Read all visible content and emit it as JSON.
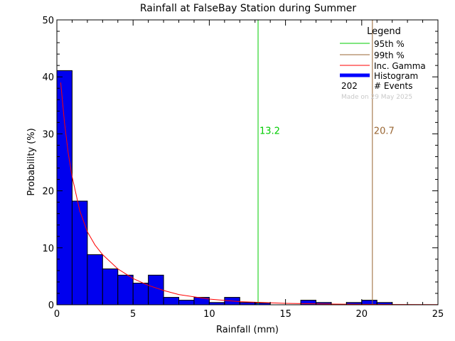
{
  "chart_data": {
    "type": "bar",
    "title": "Rainfall at FalseBay Station during Summer",
    "xlabel": "Rainfall (mm)",
    "ylabel": "Probability (%)",
    "xlim": [
      0,
      25
    ],
    "ylim": [
      0,
      50
    ],
    "xticks": [
      0,
      5,
      10,
      15,
      20,
      25
    ],
    "yticks": [
      0,
      10,
      20,
      30,
      40,
      50
    ],
    "bin_width": 1,
    "bins": [
      0,
      1,
      2,
      3,
      4,
      5,
      6,
      7,
      8,
      9,
      10,
      11,
      12,
      13,
      14,
      15,
      16,
      17,
      18,
      19,
      20,
      21
    ],
    "values": [
      41.1,
      18.2,
      8.8,
      6.3,
      5.2,
      3.8,
      5.2,
      1.3,
      0.8,
      1.3,
      0.4,
      1.3,
      0.4,
      0.3,
      0,
      0,
      0.8,
      0.4,
      0,
      0.4,
      0.8,
      0.4
    ],
    "gamma_curve": {
      "x": [
        0.25,
        0.5,
        0.75,
        1,
        1.5,
        2,
        2.5,
        3,
        4,
        5,
        6,
        7,
        8,
        10,
        12,
        15,
        18,
        21,
        25
      ],
      "y": [
        39,
        32,
        26.5,
        22.5,
        16.5,
        12.8,
        10.5,
        8.8,
        6.3,
        4.6,
        3.4,
        2.5,
        1.8,
        1.0,
        0.55,
        0.25,
        0.12,
        0.06,
        0.02
      ]
    },
    "percentile_95": 13.2,
    "percentile_99": 20.7,
    "events": 202,
    "legend": {
      "title": "Legend",
      "items": [
        {
          "label": "95th %",
          "color": "#00cc00"
        },
        {
          "label": "99th %",
          "color": "#996633"
        },
        {
          "label": "Inc. Gamma",
          "color": "#ff0000"
        },
        {
          "label": "Histogram",
          "color": "#0000ff"
        }
      ],
      "events_label": "# Events"
    },
    "watermark": "Made on 29 May 2025",
    "colors": {
      "histogram": "#0000ee",
      "gamma": "#ff0000",
      "p95": "#00cc00",
      "p99": "#996633"
    }
  }
}
